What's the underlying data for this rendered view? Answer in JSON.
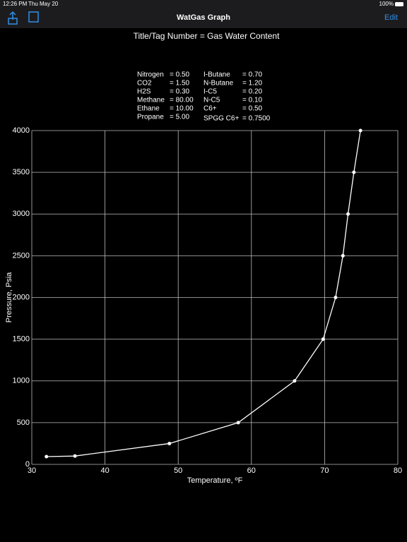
{
  "status_bar": {
    "time": "12:26 PM",
    "date": "Thu May 20",
    "battery": "100%"
  },
  "nav_bar": {
    "title": "WatGas Graph",
    "edit": "Edit"
  },
  "header": {
    "title": "Title/Tag Number  =  Gas Water Content"
  },
  "composition": {
    "left": [
      {
        "name": "Nitrogen",
        "value": "= 0.50"
      },
      {
        "name": "CO2",
        "value": "= 1.50"
      },
      {
        "name": "H2S",
        "value": "= 0.30"
      },
      {
        "name": "Methane",
        "value": "= 80.00"
      },
      {
        "name": "Ethane",
        "value": "= 10.00"
      },
      {
        "name": "Propane",
        "value": "= 5.00"
      }
    ],
    "right": [
      {
        "name": "I-Butane",
        "value": "= 0.70"
      },
      {
        "name": "N-Butane",
        "value": "= 1.20"
      },
      {
        "name": "I-C5",
        "value": "= 0.20"
      },
      {
        "name": "N-C5",
        "value": "= 0.10"
      },
      {
        "name": "C6+",
        "value": "= 0.50"
      },
      {
        "name": "SPGG C6+",
        "value": "= 0.7500"
      }
    ]
  },
  "chart_data": {
    "type": "line",
    "x_label": "Temperature, ºF",
    "y_label": "Pressure, Psia",
    "x": [
      32.0,
      35.9,
      48.8,
      58.2,
      65.9,
      69.8,
      71.5,
      72.5,
      73.2,
      74.0,
      74.9
    ],
    "series": [
      {
        "color": "#ffffff",
        "values": [
          93,
          100,
          250,
          500,
          1000,
          1500,
          2000,
          2500,
          3000,
          3500,
          4000
        ]
      }
    ],
    "xlim": [
      30,
      80
    ],
    "xticks": [
      30,
      40,
      50,
      60,
      70,
      80
    ],
    "ylim": [
      0,
      4000
    ],
    "yticks": [
      0,
      500,
      1000,
      1500,
      2000,
      2500,
      3000,
      3500,
      4000
    ],
    "grid": true
  }
}
